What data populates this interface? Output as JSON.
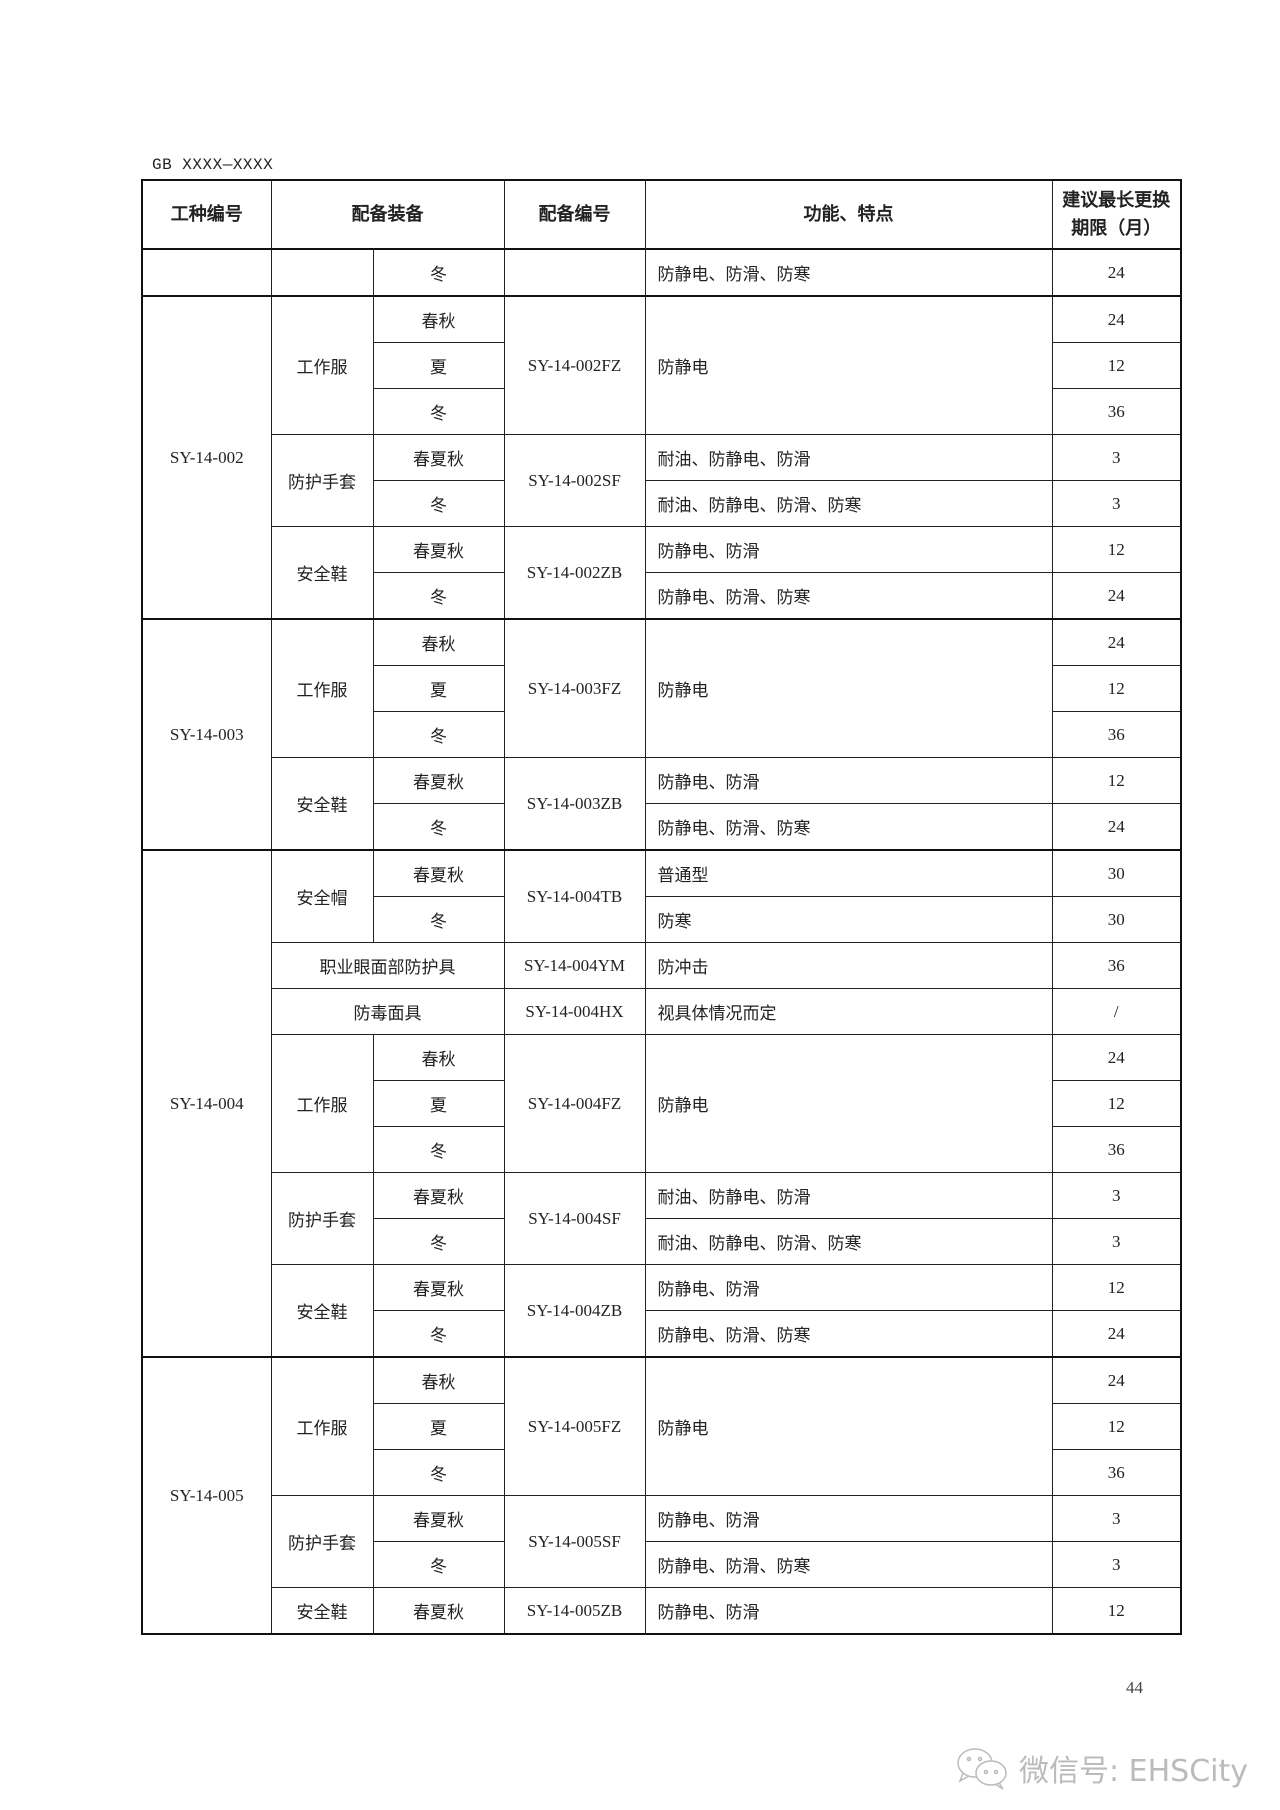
{
  "standard_id": "GB XXXX—XXXX",
  "headers": [
    "工种编号",
    "配备装备",
    "配备编号",
    "功能、特点",
    "建议最长更换期限（月）"
  ],
  "groups": [
    {
      "work_code": "",
      "equipment": [
        {
          "name": "",
          "code": "",
          "variants": [
            {
              "season": "冬",
              "feature": "防静电、防滑、防寒",
              "period": "24"
            }
          ]
        }
      ]
    },
    {
      "work_code": "SY-14-002",
      "equipment": [
        {
          "name": "工作服",
          "code": "SY-14-002FZ",
          "feature": "防静电",
          "variants": [
            {
              "season": "春秋",
              "period": "24"
            },
            {
              "season": "夏",
              "period": "12"
            },
            {
              "season": "冬",
              "period": "36"
            }
          ]
        },
        {
          "name": "防护手套",
          "code": "SY-14-002SF",
          "variants": [
            {
              "season": "春夏秋",
              "feature": "耐油、防静电、防滑",
              "period": "3"
            },
            {
              "season": "冬",
              "feature": "耐油、防静电、防滑、防寒",
              "period": "3"
            }
          ]
        },
        {
          "name": "安全鞋",
          "code": "SY-14-002ZB",
          "variants": [
            {
              "season": "春夏秋",
              "feature": "防静电、防滑",
              "period": "12"
            },
            {
              "season": "冬",
              "feature": "防静电、防滑、防寒",
              "period": "24"
            }
          ]
        }
      ]
    },
    {
      "work_code": "SY-14-003",
      "equipment": [
        {
          "name": "工作服",
          "code": "SY-14-003FZ",
          "feature": "防静电",
          "variants": [
            {
              "season": "春秋",
              "period": "24"
            },
            {
              "season": "夏",
              "period": "12"
            },
            {
              "season": "冬",
              "period": "36"
            }
          ]
        },
        {
          "name": "安全鞋",
          "code": "SY-14-003ZB",
          "variants": [
            {
              "season": "春夏秋",
              "feature": "防静电、防滑",
              "period": "12"
            },
            {
              "season": "冬",
              "feature": "防静电、防滑、防寒",
              "period": "24"
            }
          ]
        }
      ]
    },
    {
      "work_code": "SY-14-004",
      "equipment": [
        {
          "name": "安全帽",
          "code": "SY-14-004TB",
          "variants": [
            {
              "season": "春夏秋",
              "feature": "普通型",
              "period": "30"
            },
            {
              "season": "冬",
              "feature": "防寒",
              "period": "30"
            }
          ]
        },
        {
          "name": "职业眼面部防护具",
          "code": "SY-14-004YM",
          "variants": [
            {
              "feature": "防冲击",
              "period": "36"
            }
          ]
        },
        {
          "name": "防毒面具",
          "code": "SY-14-004HX",
          "variants": [
            {
              "feature": "视具体情况而定",
              "period": "/"
            }
          ]
        },
        {
          "name": "工作服",
          "code": "SY-14-004FZ",
          "feature": "防静电",
          "variants": [
            {
              "season": "春秋",
              "period": "24"
            },
            {
              "season": "夏",
              "period": "12"
            },
            {
              "season": "冬",
              "period": "36"
            }
          ]
        },
        {
          "name": "防护手套",
          "code": "SY-14-004SF",
          "variants": [
            {
              "season": "春夏秋",
              "feature": "耐油、防静电、防滑",
              "period": "3"
            },
            {
              "season": "冬",
              "feature": "耐油、防静电、防滑、防寒",
              "period": "3"
            }
          ]
        },
        {
          "name": "安全鞋",
          "code": "SY-14-004ZB",
          "variants": [
            {
              "season": "春夏秋",
              "feature": "防静电、防滑",
              "period": "12"
            },
            {
              "season": "冬",
              "feature": "防静电、防滑、防寒",
              "period": "24"
            }
          ]
        }
      ]
    },
    {
      "work_code": "SY-14-005",
      "equipment": [
        {
          "name": "工作服",
          "code": "SY-14-005FZ",
          "feature": "防静电",
          "variants": [
            {
              "season": "春秋",
              "period": "24"
            },
            {
              "season": "夏",
              "period": "12"
            },
            {
              "season": "冬",
              "period": "36"
            }
          ]
        },
        {
          "name": "防护手套",
          "code": "SY-14-005SF",
          "variants": [
            {
              "season": "春夏秋",
              "feature": "防静电、防滑",
              "period": "3"
            },
            {
              "season": "冬",
              "feature": "防静电、防滑、防寒",
              "period": "3"
            }
          ]
        },
        {
          "name": "安全鞋",
          "code": "SY-14-005ZB",
          "variants": [
            {
              "season": "春夏秋",
              "feature": "防静电、防滑",
              "period": "12"
            }
          ]
        }
      ]
    }
  ],
  "page_number": "44",
  "watermark": {
    "text": "微信号: EHSCity",
    "icon": "wechat-icon"
  }
}
